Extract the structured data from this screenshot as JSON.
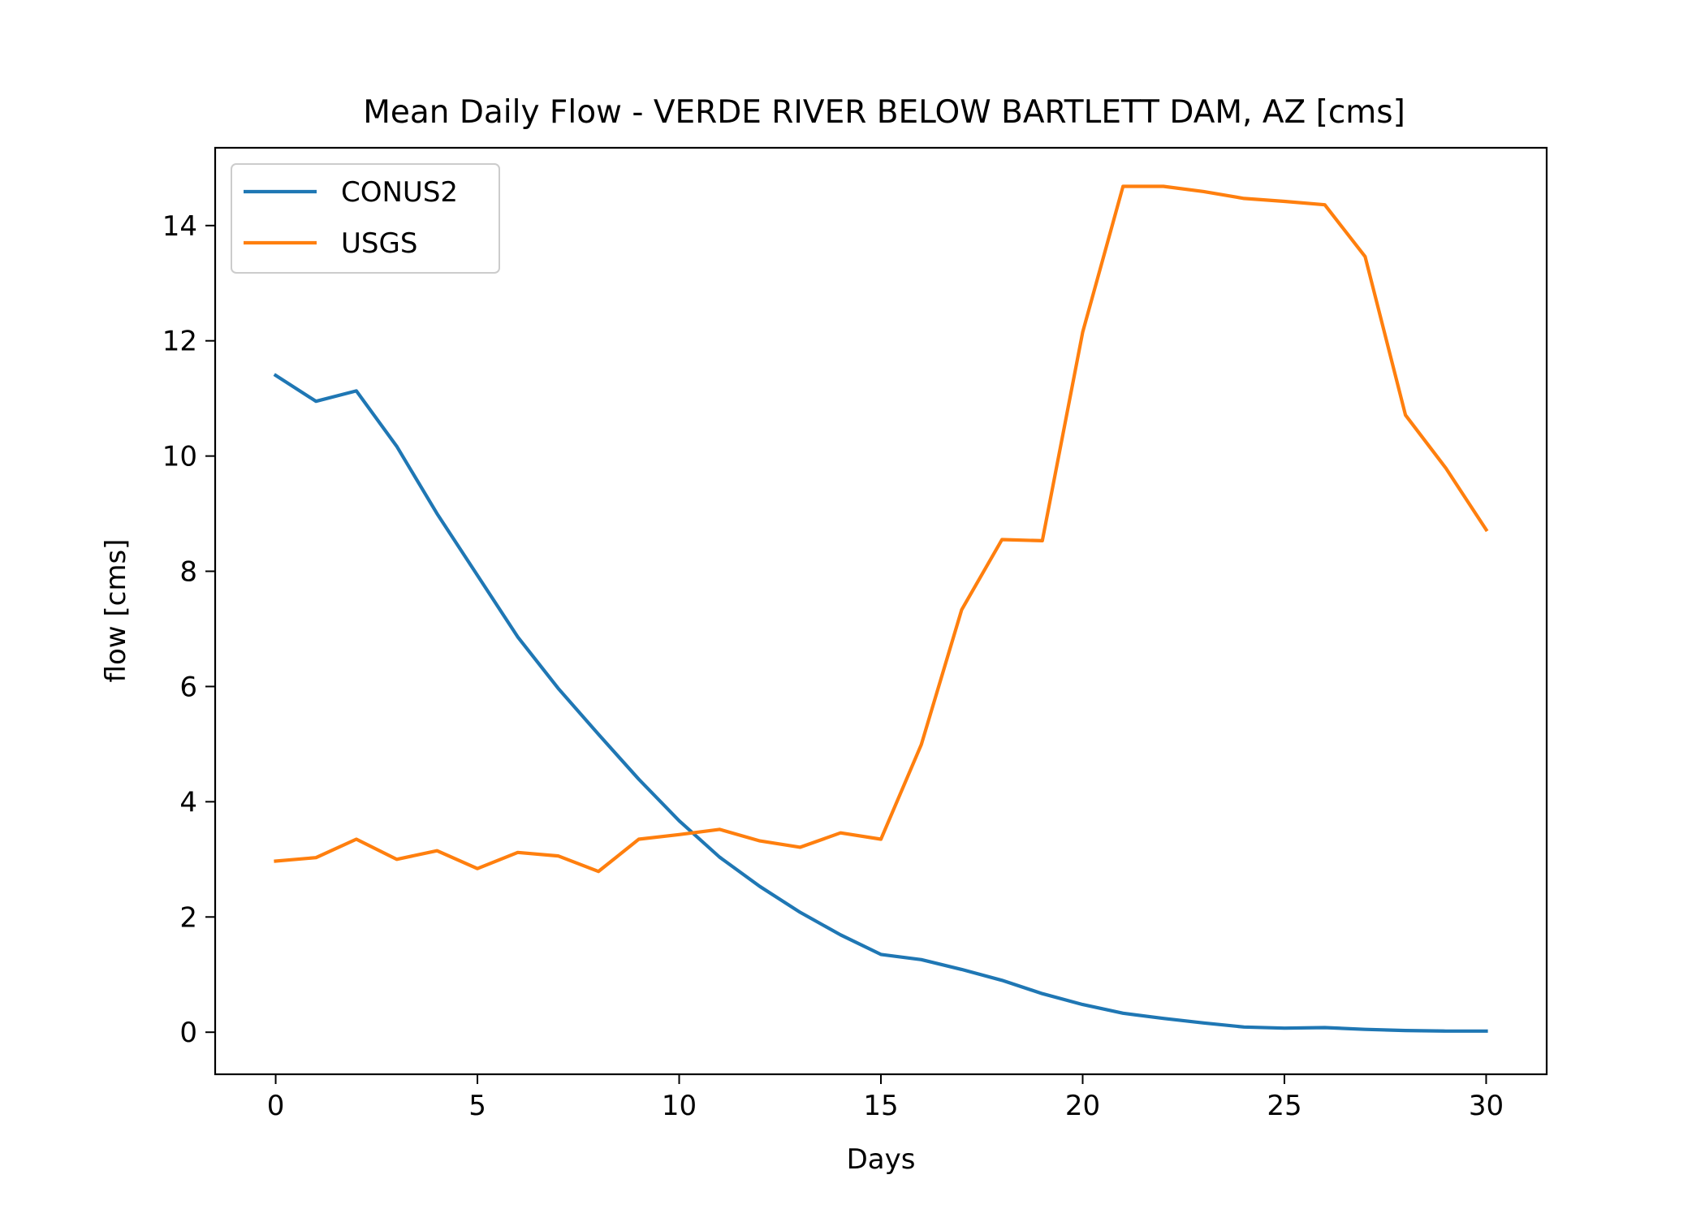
{
  "chart_data": {
    "type": "line",
    "title": "Mean Daily Flow - VERDE RIVER BELOW BARTLETT DAM, AZ [cms]",
    "xlabel": "Days",
    "ylabel": "flow [cms]",
    "xlim": [
      -1.5,
      31.5
    ],
    "ylim": [
      -0.73,
      15.35
    ],
    "xticks": [
      0,
      5,
      10,
      15,
      20,
      25,
      30
    ],
    "yticks": [
      0,
      2,
      4,
      6,
      8,
      10,
      12,
      14
    ],
    "grid": false,
    "legend_position": "upper-left",
    "x": [
      0,
      1,
      2,
      3,
      4,
      5,
      6,
      7,
      8,
      9,
      10,
      11,
      12,
      13,
      14,
      15,
      16,
      17,
      18,
      19,
      20,
      21,
      22,
      23,
      24,
      25,
      26,
      27,
      28,
      29,
      30
    ],
    "series": [
      {
        "name": "CONUS2",
        "color": "#1f77b4",
        "values": [
          11.4,
          10.95,
          11.13,
          10.17,
          9.0,
          7.93,
          6.86,
          5.97,
          5.17,
          4.39,
          3.67,
          3.04,
          2.53,
          2.08,
          1.69,
          1.35,
          1.26,
          1.09,
          0.9,
          0.67,
          0.48,
          0.33,
          0.24,
          0.16,
          0.09,
          0.07,
          0.08,
          0.05,
          0.03,
          0.02,
          0.02
        ]
      },
      {
        "name": "USGS",
        "color": "#ff7f0e",
        "values": [
          2.97,
          3.03,
          3.35,
          3.0,
          3.15,
          2.84,
          3.12,
          3.06,
          2.79,
          3.35,
          3.43,
          3.52,
          3.32,
          3.21,
          3.46,
          3.35,
          4.99,
          7.33,
          8.55,
          8.53,
          12.15,
          14.68,
          14.68,
          14.59,
          14.47,
          14.42,
          14.36,
          13.46,
          10.71,
          9.79,
          8.72
        ]
      }
    ]
  }
}
